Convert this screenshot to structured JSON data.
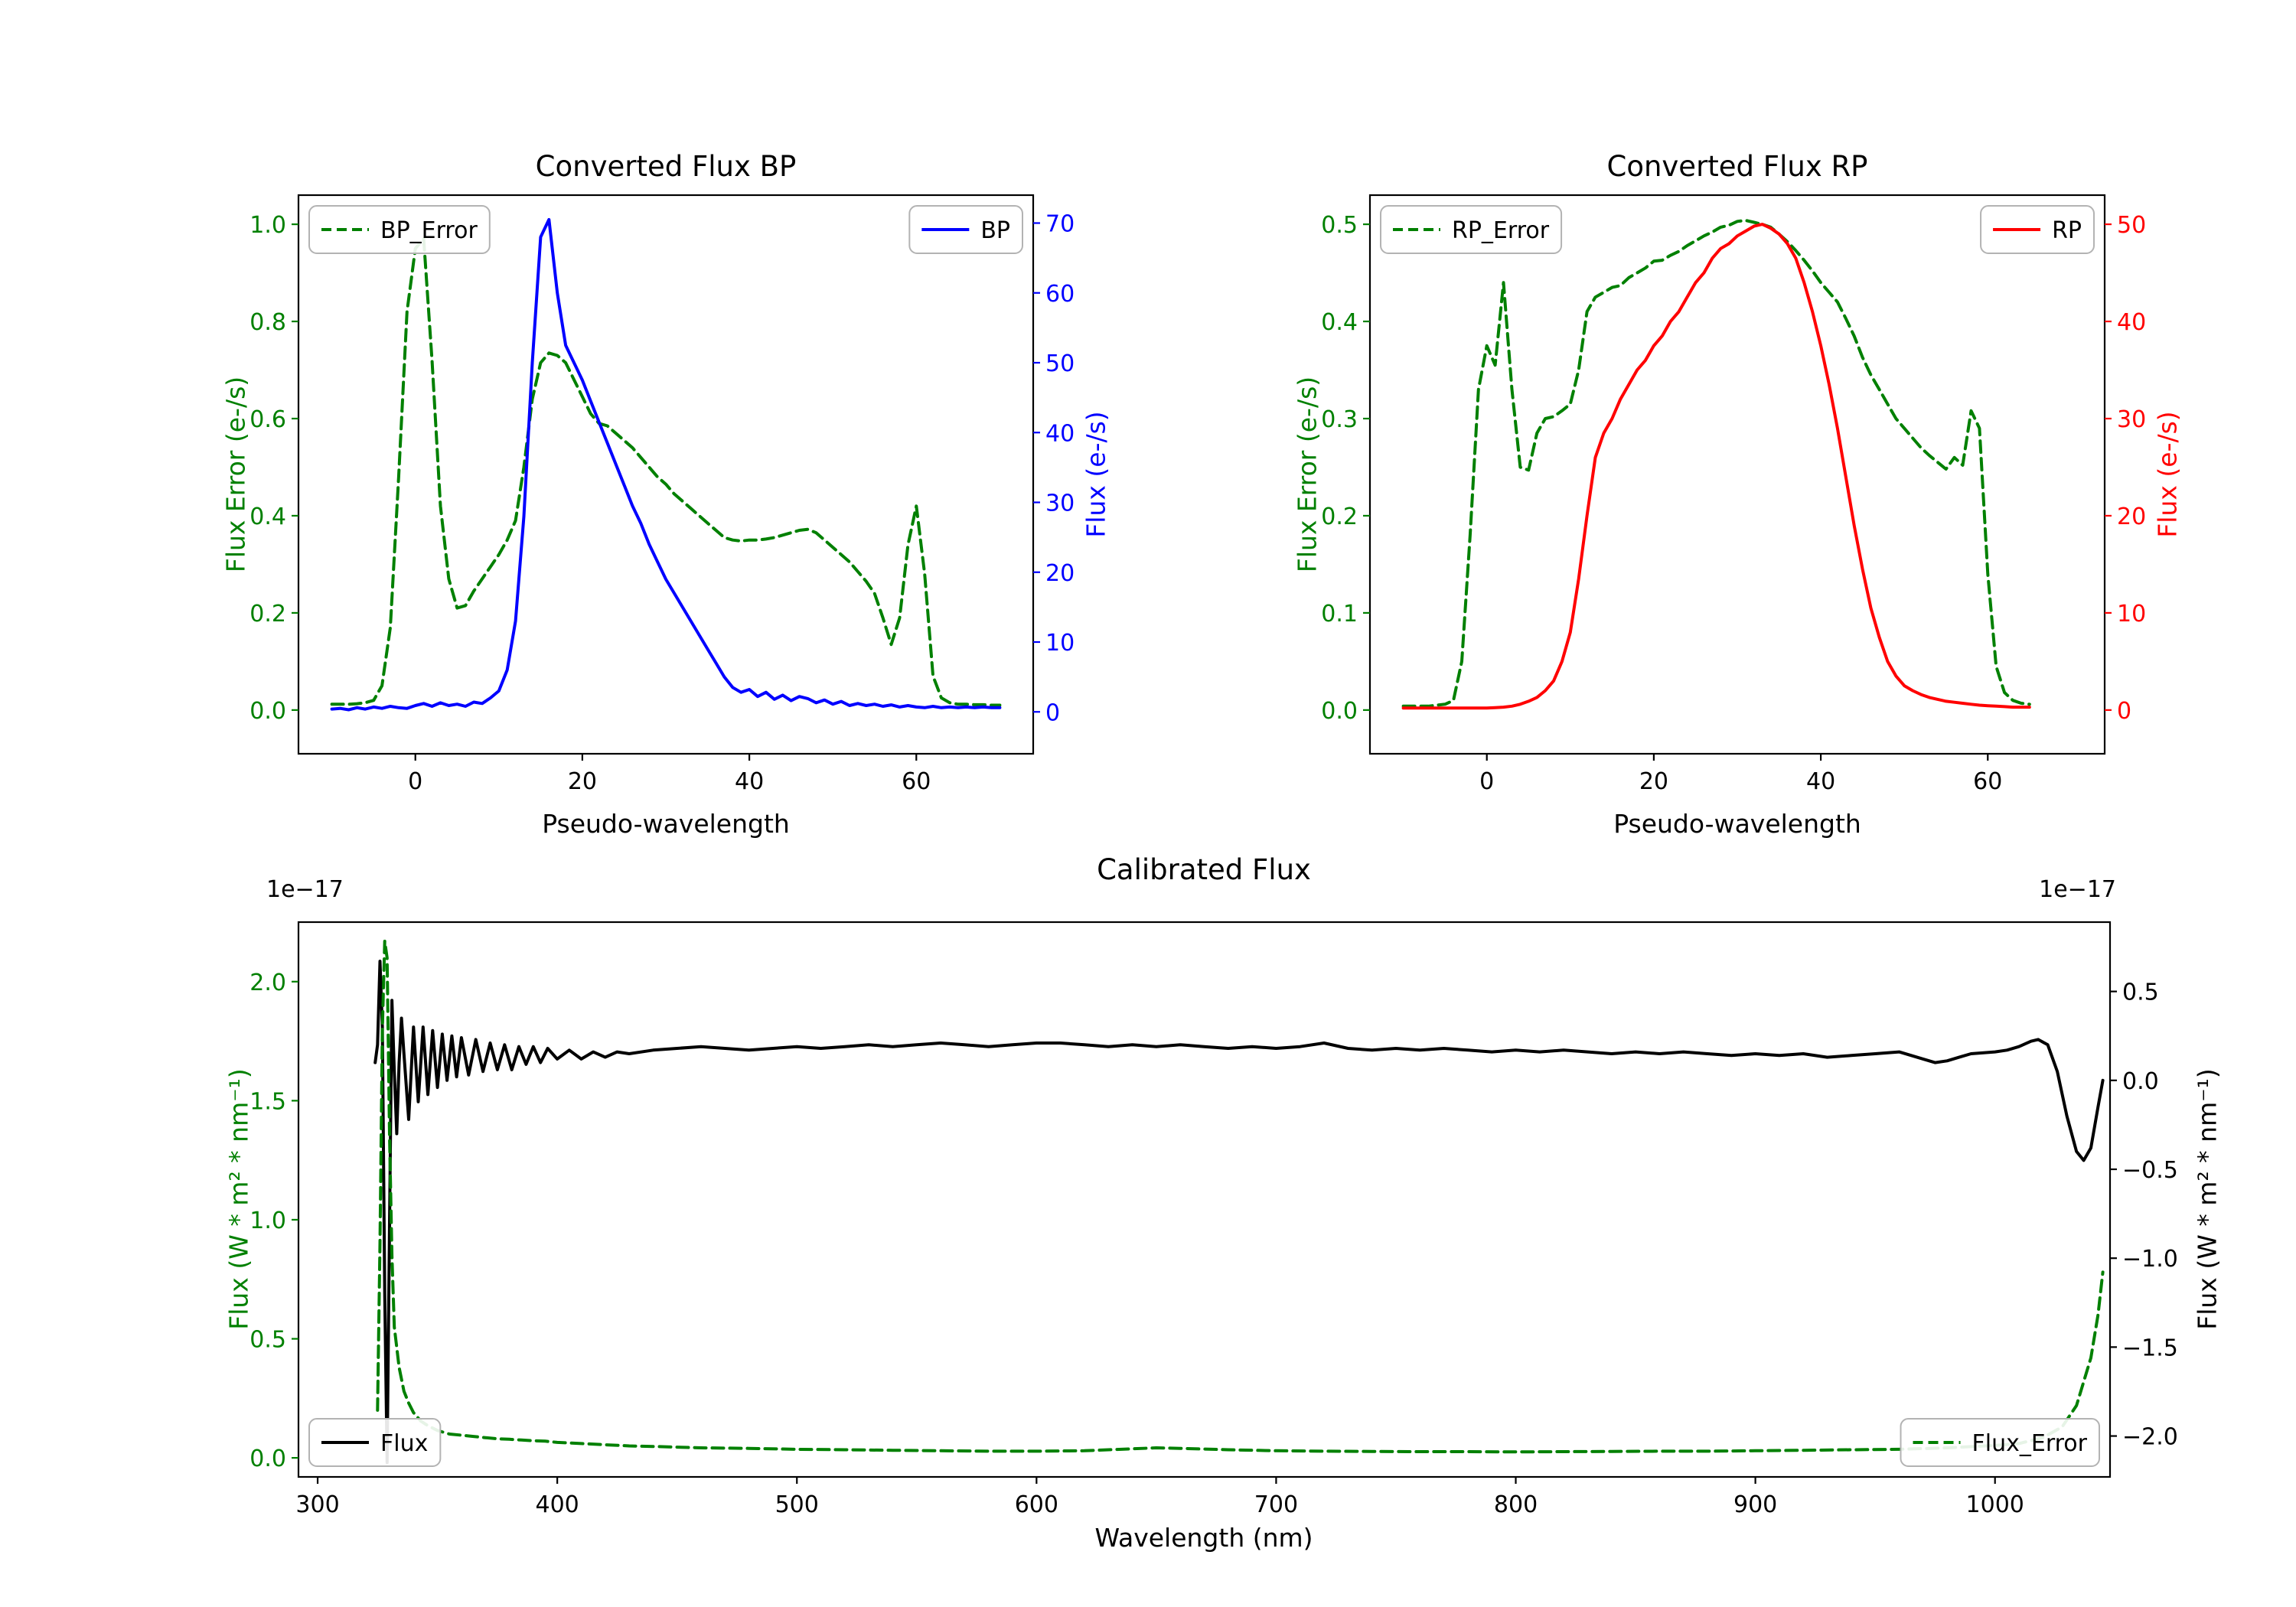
{
  "figure": {
    "background": "#ffffff",
    "offset_label": "1e−17"
  },
  "colors": {
    "error_green": "#008000",
    "bp_blue": "#0000ff",
    "rp_red": "#ff0000",
    "flux_black": "#000000",
    "legend_border": "#b3b3b3"
  },
  "chart_data": [
    {
      "id": "bp",
      "type": "line",
      "title": "Converted Flux BP",
      "xlabel": "Pseudo-wavelength",
      "xlim": [
        -14,
        74
      ],
      "xticks": [
        0,
        20,
        40,
        60
      ],
      "grid": false,
      "axes": {
        "left": {
          "label": "Flux Error (e-/s)",
          "color": "#008000",
          "lim": [
            -0.09,
            1.06
          ],
          "ticks": [
            0.0,
            0.2,
            0.4,
            0.6,
            0.8,
            1.0
          ],
          "decimals": 1
        },
        "right": {
          "label": "Flux (e-/s)",
          "color": "#0000ff",
          "lim": [
            -6,
            74
          ],
          "ticks": [
            0,
            10,
            20,
            30,
            40,
            50,
            60,
            70
          ],
          "decimals": 0
        }
      },
      "x": [
        -10,
        -9,
        -8,
        -7,
        -6,
        -5,
        -4,
        -3,
        -2,
        -1,
        0,
        1,
        2,
        3,
        4,
        5,
        6,
        7,
        8,
        9,
        10,
        11,
        12,
        13,
        14,
        15,
        16,
        17,
        18,
        19,
        20,
        21,
        22,
        23,
        24,
        25,
        26,
        27,
        28,
        29,
        30,
        31,
        32,
        33,
        34,
        35,
        36,
        37,
        38,
        39,
        40,
        41,
        42,
        43,
        44,
        45,
        46,
        47,
        48,
        49,
        50,
        51,
        52,
        53,
        54,
        55,
        56,
        57,
        58,
        59,
        60,
        61,
        62,
        63,
        64,
        65,
        66,
        67,
        68,
        69,
        70
      ],
      "series": [
        {
          "name": "BP_Error",
          "axis": "left",
          "color": "#008000",
          "dash": true,
          "y": [
            0.012,
            0.012,
            0.012,
            0.013,
            0.015,
            0.02,
            0.05,
            0.17,
            0.48,
            0.82,
            0.95,
            0.97,
            0.72,
            0.42,
            0.27,
            0.21,
            0.215,
            0.245,
            0.27,
            0.295,
            0.32,
            0.35,
            0.39,
            0.5,
            0.64,
            0.715,
            0.735,
            0.73,
            0.715,
            0.68,
            0.645,
            0.61,
            0.59,
            0.585,
            0.57,
            0.555,
            0.54,
            0.52,
            0.5,
            0.48,
            0.465,
            0.445,
            0.43,
            0.415,
            0.4,
            0.385,
            0.37,
            0.355,
            0.35,
            0.348,
            0.35,
            0.35,
            0.352,
            0.355,
            0.36,
            0.365,
            0.37,
            0.372,
            0.365,
            0.35,
            0.335,
            0.32,
            0.305,
            0.285,
            0.265,
            0.24,
            0.19,
            0.135,
            0.19,
            0.34,
            0.42,
            0.28,
            0.07,
            0.025,
            0.015,
            0.012,
            0.012,
            0.011,
            0.011,
            0.01,
            0.01
          ]
        },
        {
          "name": "BP",
          "axis": "right",
          "color": "#0000ff",
          "dash": false,
          "y": [
            0.4,
            0.5,
            0.3,
            0.6,
            0.4,
            0.7,
            0.5,
            0.8,
            0.6,
            0.5,
            0.9,
            1.2,
            0.8,
            1.3,
            0.9,
            1.1,
            0.8,
            1.4,
            1.2,
            2.0,
            3.0,
            6.0,
            13.0,
            28.0,
            50.0,
            68.0,
            70.5,
            60.0,
            52.5,
            50.0,
            47.5,
            44.5,
            41.5,
            38.5,
            35.5,
            32.5,
            29.5,
            27.0,
            24.0,
            21.5,
            19.0,
            17.0,
            15.0,
            13.0,
            11.0,
            9.0,
            7.0,
            5.0,
            3.5,
            2.8,
            3.2,
            2.2,
            2.8,
            1.8,
            2.4,
            1.6,
            2.2,
            1.9,
            1.3,
            1.7,
            1.1,
            1.5,
            0.9,
            1.2,
            0.9,
            1.1,
            0.8,
            1.0,
            0.7,
            0.9,
            0.7,
            0.6,
            0.8,
            0.6,
            0.7,
            0.6,
            0.7,
            0.6,
            0.7,
            0.6,
            0.6
          ]
        }
      ],
      "legends": [
        {
          "series": "BP_Error",
          "loc": "upper-left"
        },
        {
          "series": "BP",
          "loc": "upper-right"
        }
      ]
    },
    {
      "id": "rp",
      "type": "line",
      "title": "Converted Flux RP",
      "xlabel": "Pseudo-wavelength",
      "xlim": [
        -14,
        74
      ],
      "xticks": [
        0,
        20,
        40,
        60
      ],
      "grid": false,
      "axes": {
        "left": {
          "label": "Flux Error (e-/s)",
          "color": "#008000",
          "lim": [
            -0.045,
            0.53
          ],
          "ticks": [
            0.0,
            0.1,
            0.2,
            0.3,
            0.4,
            0.5
          ],
          "decimals": 1
        },
        "right": {
          "label": "Flux (e-/s)",
          "color": "#ff0000",
          "lim": [
            -4.5,
            53
          ],
          "ticks": [
            0,
            10,
            20,
            30,
            40,
            50
          ],
          "decimals": 0
        }
      },
      "x": [
        -10,
        -9,
        -8,
        -7,
        -6,
        -5,
        -4,
        -3,
        -2,
        -1,
        0,
        1,
        2,
        3,
        4,
        5,
        6,
        7,
        8,
        9,
        10,
        11,
        12,
        13,
        14,
        15,
        16,
        17,
        18,
        19,
        20,
        21,
        22,
        23,
        24,
        25,
        26,
        27,
        28,
        29,
        30,
        31,
        32,
        33,
        34,
        35,
        36,
        37,
        38,
        39,
        40,
        41,
        42,
        43,
        44,
        45,
        46,
        47,
        48,
        49,
        50,
        51,
        52,
        53,
        54,
        55,
        56,
        57,
        58,
        59,
        60,
        61,
        62,
        63,
        64,
        65
      ],
      "series": [
        {
          "name": "RP_Error",
          "axis": "left",
          "color": "#008000",
          "dash": true,
          "y": [
            0.004,
            0.004,
            0.004,
            0.004,
            0.005,
            0.006,
            0.01,
            0.05,
            0.18,
            0.33,
            0.375,
            0.355,
            0.44,
            0.33,
            0.25,
            0.247,
            0.285,
            0.3,
            0.302,
            0.308,
            0.315,
            0.35,
            0.41,
            0.425,
            0.43,
            0.435,
            0.437,
            0.445,
            0.45,
            0.455,
            0.462,
            0.463,
            0.468,
            0.472,
            0.478,
            0.483,
            0.488,
            0.492,
            0.497,
            0.499,
            0.503,
            0.504,
            0.502,
            0.5,
            0.497,
            0.49,
            0.482,
            0.473,
            0.463,
            0.452,
            0.44,
            0.43,
            0.42,
            0.403,
            0.385,
            0.363,
            0.345,
            0.33,
            0.315,
            0.3,
            0.29,
            0.28,
            0.27,
            0.262,
            0.255,
            0.248,
            0.26,
            0.252,
            0.308,
            0.29,
            0.14,
            0.045,
            0.018,
            0.01,
            0.007,
            0.006
          ]
        },
        {
          "name": "RP",
          "axis": "right",
          "color": "#ff0000",
          "dash": false,
          "y": [
            0.2,
            0.2,
            0.2,
            0.2,
            0.2,
            0.2,
            0.2,
            0.2,
            0.2,
            0.2,
            0.2,
            0.25,
            0.3,
            0.4,
            0.6,
            0.9,
            1.3,
            2.0,
            3.0,
            5.0,
            8.0,
            13.5,
            20.0,
            26.0,
            28.5,
            30.0,
            32.0,
            33.5,
            35.0,
            36.0,
            37.5,
            38.5,
            40.0,
            41.0,
            42.5,
            44.0,
            45.0,
            46.5,
            47.5,
            48.0,
            48.8,
            49.3,
            49.8,
            50.0,
            49.6,
            49.0,
            48.0,
            46.5,
            44.0,
            41.0,
            37.5,
            33.5,
            29.0,
            24.0,
            19.0,
            14.5,
            10.5,
            7.5,
            5.0,
            3.5,
            2.5,
            2.0,
            1.6,
            1.3,
            1.1,
            0.9,
            0.8,
            0.7,
            0.6,
            0.5,
            0.45,
            0.4,
            0.35,
            0.3,
            0.3,
            0.3
          ]
        }
      ],
      "legends": [
        {
          "series": "RP_Error",
          "loc": "upper-left"
        },
        {
          "series": "RP",
          "loc": "upper-right"
        }
      ]
    },
    {
      "id": "cal",
      "type": "line",
      "title": "Calibrated Flux",
      "xlabel": "Wavelength (nm)",
      "offset_text": "1e−17",
      "xlim": [
        292,
        1048
      ],
      "xticks": [
        300,
        400,
        500,
        600,
        700,
        800,
        900,
        1000
      ],
      "grid": false,
      "axes": {
        "left": {
          "label": "Flux (W * m² * nm⁻¹)",
          "color": "#008000",
          "lim": [
            -0.08,
            2.25
          ],
          "ticks": [
            0.0,
            0.5,
            1.0,
            1.5,
            2.0
          ],
          "decimals": 1
        },
        "right": {
          "label": "Flux (W * m² * nm⁻¹)",
          "color": "#000000",
          "lim": [
            -2.23,
            0.89
          ],
          "ticks": [
            0.5,
            0.0,
            -0.5,
            -1.0,
            -1.5,
            -2.0
          ],
          "decimals": 1
        }
      },
      "series": [
        {
          "name": "Flux",
          "axis": "right",
          "color": "#000000",
          "dash": false,
          "x": [
            324,
            325,
            326,
            327,
            328,
            329,
            330,
            331,
            332,
            333,
            334,
            335,
            336,
            338,
            340,
            342,
            344,
            346,
            348,
            350,
            352,
            354,
            356,
            358,
            360,
            363,
            366,
            369,
            372,
            375,
            378,
            381,
            384,
            387,
            390,
            393,
            396,
            400,
            405,
            410,
            415,
            420,
            425,
            430,
            440,
            450,
            460,
            470,
            480,
            490,
            500,
            510,
            520,
            530,
            540,
            550,
            560,
            570,
            580,
            590,
            600,
            610,
            620,
            630,
            640,
            650,
            660,
            670,
            680,
            690,
            700,
            710,
            720,
            730,
            740,
            750,
            760,
            770,
            780,
            790,
            800,
            810,
            820,
            830,
            840,
            850,
            860,
            870,
            880,
            890,
            900,
            910,
            920,
            930,
            940,
            950,
            960,
            970,
            975,
            980,
            985,
            990,
            1000,
            1005,
            1010,
            1015,
            1018,
            1022,
            1026,
            1030,
            1034,
            1037,
            1040,
            1043,
            1045
          ],
          "y": [
            0.1,
            0.2,
            0.67,
            0.3,
            -1.2,
            -2.15,
            -0.8,
            0.45,
            0.05,
            -0.3,
            0.1,
            0.35,
            0.15,
            -0.22,
            0.3,
            -0.12,
            0.3,
            -0.08,
            0.28,
            -0.04,
            0.26,
            0.0,
            0.25,
            0.02,
            0.24,
            0.03,
            0.23,
            0.05,
            0.21,
            0.06,
            0.2,
            0.06,
            0.19,
            0.09,
            0.19,
            0.1,
            0.18,
            0.12,
            0.17,
            0.12,
            0.16,
            0.13,
            0.16,
            0.15,
            0.17,
            0.18,
            0.19,
            0.18,
            0.17,
            0.18,
            0.19,
            0.18,
            0.19,
            0.2,
            0.19,
            0.2,
            0.21,
            0.2,
            0.19,
            0.2,
            0.21,
            0.21,
            0.2,
            0.19,
            0.2,
            0.19,
            0.2,
            0.19,
            0.18,
            0.19,
            0.18,
            0.19,
            0.21,
            0.18,
            0.17,
            0.18,
            0.17,
            0.18,
            0.17,
            0.16,
            0.17,
            0.16,
            0.17,
            0.16,
            0.15,
            0.16,
            0.15,
            0.16,
            0.15,
            0.14,
            0.15,
            0.14,
            0.15,
            0.13,
            0.14,
            0.15,
            0.16,
            0.12,
            0.1,
            0.11,
            0.13,
            0.15,
            0.16,
            0.17,
            0.19,
            0.22,
            0.23,
            0.2,
            0.05,
            -0.2,
            -0.4,
            -0.45,
            -0.38,
            -0.15,
            0.0
          ]
        },
        {
          "name": "Flux_Error",
          "axis": "left",
          "color": "#008000",
          "dash": true,
          "x": [
            325,
            326,
            327,
            328,
            329,
            330,
            331,
            332,
            334,
            336,
            338,
            340,
            343,
            346,
            350,
            355,
            360,
            365,
            370,
            375,
            380,
            385,
            390,
            395,
            400,
            410,
            420,
            430,
            440,
            450,
            460,
            480,
            500,
            520,
            540,
            560,
            580,
            600,
            620,
            640,
            650,
            660,
            680,
            700,
            720,
            740,
            760,
            780,
            800,
            820,
            840,
            860,
            880,
            900,
            920,
            940,
            960,
            980,
            1000,
            1010,
            1020,
            1028,
            1034,
            1040,
            1043,
            1045
          ],
          "y": [
            0.2,
            0.9,
            1.8,
            2.17,
            2.1,
            1.35,
            0.85,
            0.55,
            0.38,
            0.28,
            0.23,
            0.19,
            0.155,
            0.135,
            0.115,
            0.1,
            0.095,
            0.09,
            0.085,
            0.08,
            0.078,
            0.075,
            0.072,
            0.07,
            0.065,
            0.06,
            0.055,
            0.05,
            0.048,
            0.045,
            0.042,
            0.04,
            0.036,
            0.034,
            0.032,
            0.03,
            0.028,
            0.028,
            0.03,
            0.038,
            0.042,
            0.04,
            0.034,
            0.03,
            0.028,
            0.027,
            0.026,
            0.026,
            0.025,
            0.026,
            0.027,
            0.028,
            0.028,
            0.03,
            0.032,
            0.034,
            0.036,
            0.042,
            0.052,
            0.06,
            0.085,
            0.13,
            0.22,
            0.42,
            0.6,
            0.78
          ]
        }
      ],
      "legends": [
        {
          "series": "Flux",
          "loc": "lower-left"
        },
        {
          "series": "Flux_Error",
          "loc": "lower-right"
        }
      ]
    }
  ]
}
